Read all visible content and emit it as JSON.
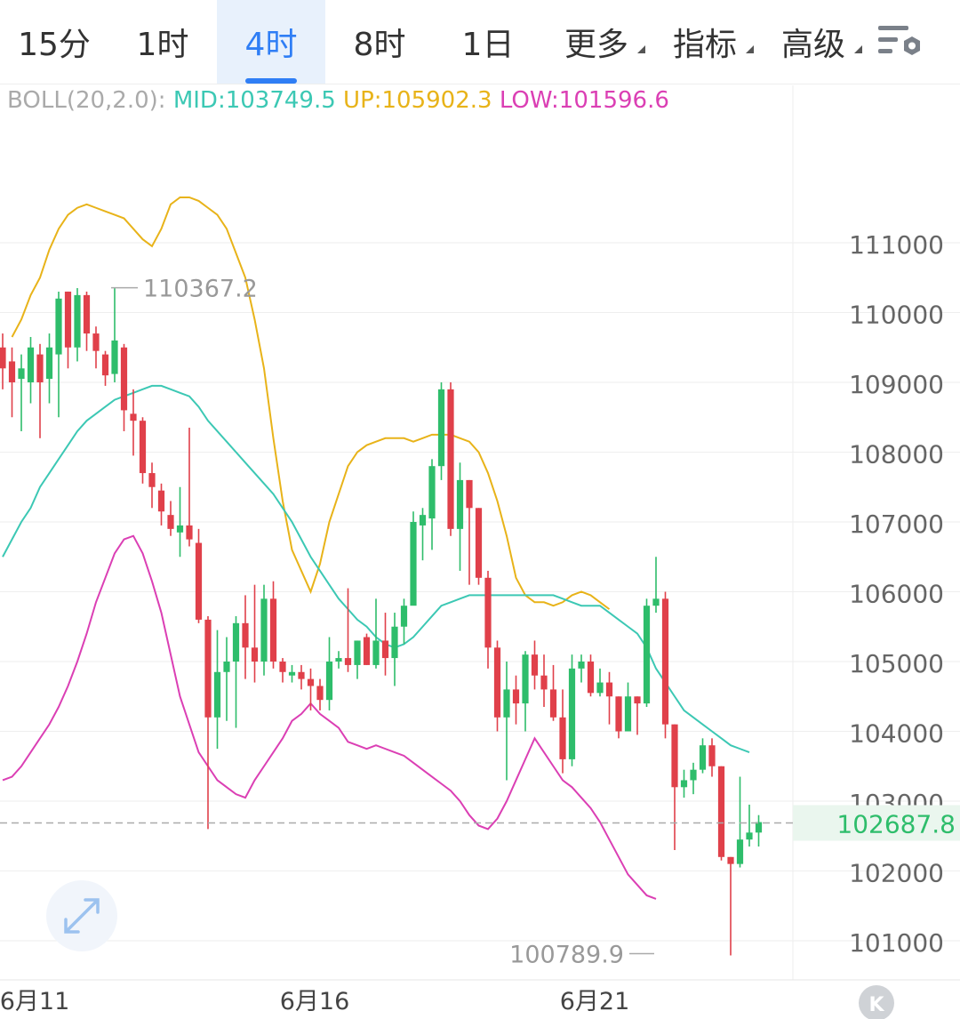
{
  "tabs": [
    "15分",
    "1时",
    "4时",
    "8时",
    "1日",
    "更多",
    "指标",
    "高级"
  ],
  "active_tab": "4时",
  "colors": {
    "up": "#2ebd6b",
    "down": "#e0404a",
    "mid": "#3cc8b4",
    "upper": "#e8b319",
    "lower": "#db3fb4",
    "price_line": "#aaaaaa",
    "accent": "#2f7ef5"
  },
  "icons": {
    "settings": "chart-settings-icon",
    "expand": "expand-icon",
    "k_button": "k-logo-icon"
  },
  "boll": {
    "name": "BOLL(20,2.0):",
    "mid": "MID:103749.5",
    "up": "UP:105902.3",
    "low": "LOW:101596.6"
  },
  "k_label": "K",
  "chart_data": {
    "type": "candlestick",
    "y_ticks": [
      111000,
      110000,
      109000,
      108000,
      107000,
      106000,
      105000,
      104000,
      103000,
      102000,
      101000
    ],
    "y_tick_labels": [
      "111000",
      "110000",
      "109000",
      "108000",
      "107000",
      "106000",
      "105000",
      "104000",
      "103000",
      "102000",
      "101000"
    ],
    "ylim": [
      100450,
      112400
    ],
    "x_labels": [
      {
        "i": 0,
        "label": "6月11"
      },
      {
        "i": 30,
        "label": "6月16"
      },
      {
        "i": 60,
        "label": "6月21"
      }
    ],
    "current_price": 102687.8,
    "current_price_label": "102687.8",
    "max_annotation": {
      "i": 8,
      "value": 110367.2,
      "label": "110367.2"
    },
    "min_annotation": {
      "i": 70,
      "value": 100789.9,
      "label": "100789.9"
    },
    "candles": [
      [
        109500,
        109200,
        109700,
        108900
      ],
      [
        109300,
        109000,
        109500,
        108500
      ],
      [
        109050,
        109200,
        109400,
        108300
      ],
      [
        109000,
        109500,
        109650,
        108700
      ],
      [
        109400,
        109000,
        109550,
        108200
      ],
      [
        109050,
        109500,
        109700,
        108700
      ],
      [
        109400,
        110200,
        110300,
        108500
      ],
      [
        110300,
        109500,
        110300,
        109200
      ],
      [
        109500,
        110250,
        110350,
        109300
      ],
      [
        110250,
        109700,
        110300,
        109450
      ],
      [
        109700,
        109450,
        109800,
        109200
      ],
      [
        109400,
        109100,
        109450,
        108950
      ],
      [
        109120,
        109600,
        110350,
        109000
      ],
      [
        109500,
        108600,
        109550,
        108300
      ],
      [
        108550,
        108450,
        108900,
        107950
      ],
      [
        108450,
        107700,
        108500,
        107550
      ],
      [
        107700,
        107500,
        107850,
        107200
      ],
      [
        107450,
        107150,
        107550,
        106950
      ],
      [
        107100,
        106900,
        107300,
        106800
      ],
      [
        106850,
        106950,
        107500,
        106500
      ],
      [
        106950,
        106750,
        108350,
        106650
      ],
      [
        106700,
        105600,
        106900,
        105550
      ],
      [
        105600,
        104200,
        105650,
        102600
      ],
      [
        104200,
        104850,
        105450,
        103750
      ],
      [
        104850,
        105000,
        105350,
        104150
      ],
      [
        105000,
        105550,
        105650,
        104050
      ],
      [
        105550,
        105200,
        105950,
        104750
      ],
      [
        105200,
        105000,
        106100,
        104700
      ],
      [
        105000,
        105900,
        106100,
        104800
      ],
      [
        105900,
        105000,
        106150,
        104900
      ],
      [
        105000,
        104850,
        105050,
        104700
      ],
      [
        104800,
        104850,
        104950,
        104700
      ],
      [
        104850,
        104750,
        104950,
        104600
      ],
      [
        104750,
        104650,
        104900,
        104300
      ],
      [
        104650,
        104450,
        104750,
        104300
      ],
      [
        104450,
        105000,
        105350,
        104300
      ],
      [
        105000,
        105050,
        105150,
        104900
      ],
      [
        105050,
        104950,
        106050,
        104850
      ],
      [
        104950,
        105300,
        105300,
        104750
      ],
      [
        105350,
        104950,
        105400,
        104950
      ],
      [
        104950,
        105300,
        105900,
        104900
      ],
      [
        105300,
        105050,
        105700,
        104800
      ],
      [
        105050,
        105500,
        105700,
        104650
      ],
      [
        105500,
        105800,
        105900,
        105250
      ],
      [
        105800,
        107000,
        107150,
        105850
      ],
      [
        106950,
        107100,
        107200,
        106450
      ],
      [
        107050,
        107800,
        107900,
        106600
      ],
      [
        107800,
        108900,
        109000,
        107600
      ],
      [
        108900,
        106900,
        109000,
        106800
      ],
      [
        106900,
        107600,
        107850,
        106300
      ],
      [
        107600,
        107200,
        107600,
        106100
      ],
      [
        107200,
        106200,
        107200,
        106100
      ],
      [
        106200,
        105200,
        106300,
        104900
      ],
      [
        105200,
        104200,
        105300,
        104000
      ],
      [
        104200,
        104600,
        105000,
        103300
      ],
      [
        104600,
        104400,
        104800,
        104100
      ],
      [
        104400,
        105100,
        105150,
        104000
      ],
      [
        105100,
        104800,
        105300,
        104600
      ],
      [
        104800,
        104600,
        105100,
        104350
      ],
      [
        104600,
        104200,
        104950,
        104150
      ],
      [
        104200,
        103600,
        104600,
        103400
      ],
      [
        103600,
        104900,
        105100,
        103500
      ],
      [
        104900,
        105000,
        105100,
        104700
      ],
      [
        105000,
        104550,
        105100,
        104500
      ],
      [
        104550,
        104700,
        104900,
        104500
      ],
      [
        104700,
        104500,
        104850,
        104100
      ],
      [
        104500,
        104000,
        104500,
        103900
      ],
      [
        104000,
        104500,
        104700,
        104000
      ],
      [
        104500,
        104400,
        104500,
        103950
      ],
      [
        104400,
        105800,
        105900,
        104350
      ],
      [
        105800,
        105900,
        106500,
        105700
      ],
      [
        105900,
        104100,
        106000,
        103900
      ],
      [
        104100,
        103200,
        104100,
        102300
      ],
      [
        103200,
        103300,
        103450,
        103050
      ],
      [
        103300,
        103450,
        103550,
        103100
      ],
      [
        103450,
        103800,
        103900,
        103400
      ],
      [
        103800,
        103500,
        103900,
        103350
      ],
      [
        103500,
        102200,
        103500,
        102150
      ],
      [
        102200,
        102100,
        102200,
        100789.9
      ],
      [
        102100,
        102450,
        103350,
        102050
      ],
      [
        102450,
        102550,
        102950,
        102350
      ],
      [
        102550,
        102700,
        102800,
        102350
      ]
    ],
    "upper_band": [
      109650,
      109900,
      110250,
      110500,
      110900,
      111200,
      111400,
      111500,
      111550,
      111500,
      111450,
      111400,
      111350,
      111200,
      111050,
      110950,
      111200,
      111550,
      111650,
      111650,
      111600,
      111500,
      111400,
      111200,
      110850,
      110500,
      109900,
      109200,
      108200,
      107300,
      106600,
      106300,
      106000,
      106400,
      107000,
      107400,
      107800,
      108000,
      108100,
      108150,
      108200,
      108200,
      108200,
      108150,
      108200,
      108250,
      108250,
      108250,
      108200,
      108150,
      108000,
      107700,
      107300,
      106800,
      106200,
      105950,
      105850,
      105850,
      105800,
      105850,
      105950,
      106000,
      105950,
      105850,
      105750
    ],
    "upper_offset": 1,
    "mid_band": [
      106500,
      106750,
      107000,
      107200,
      107500,
      107700,
      107900,
      108100,
      108300,
      108450,
      108550,
      108650,
      108750,
      108800,
      108850,
      108900,
      108950,
      108950,
      108900,
      108850,
      108800,
      108650,
      108450,
      108300,
      108150,
      108000,
      107850,
      107700,
      107550,
      107400,
      107200,
      107000,
      106750,
      106500,
      106300,
      106100,
      105900,
      105750,
      105600,
      105500,
      105350,
      105250,
      105200,
      105250,
      105350,
      105500,
      105650,
      105800,
      105850,
      105900,
      105950,
      105950,
      105950,
      105950,
      105950,
      105950,
      105950,
      105950,
      105950,
      105950,
      105900,
      105850,
      105800,
      105800,
      105800,
      105700,
      105600,
      105500,
      105400,
      105200,
      104900,
      104700,
      104500,
      104300,
      104200,
      104100,
      104000,
      103900,
      103800,
      103750,
      103700
    ],
    "lower_band": [
      103300,
      103350,
      103500,
      103700,
      103900,
      104100,
      104350,
      104650,
      105000,
      105400,
      105850,
      106200,
      106550,
      106750,
      106800,
      106550,
      106150,
      105700,
      105100,
      104500,
      104100,
      103700,
      103500,
      103300,
      103200,
      103100,
      103050,
      103300,
      103500,
      103700,
      103900,
      104150,
      104250,
      104400,
      104250,
      104150,
      104050,
      103850,
      103800,
      103750,
      103800,
      103750,
      103700,
      103650,
      103550,
      103450,
      103350,
      103250,
      103150,
      103000,
      102800,
      102650,
      102600,
      102750,
      103000,
      103300,
      103600,
      103900,
      103700,
      103500,
      103300,
      103200,
      103050,
      102900,
      102700,
      102450,
      102200,
      101950,
      101800,
      101650,
      101600
    ],
    "lower_offset": 0,
    "mid_offset": 0
  }
}
